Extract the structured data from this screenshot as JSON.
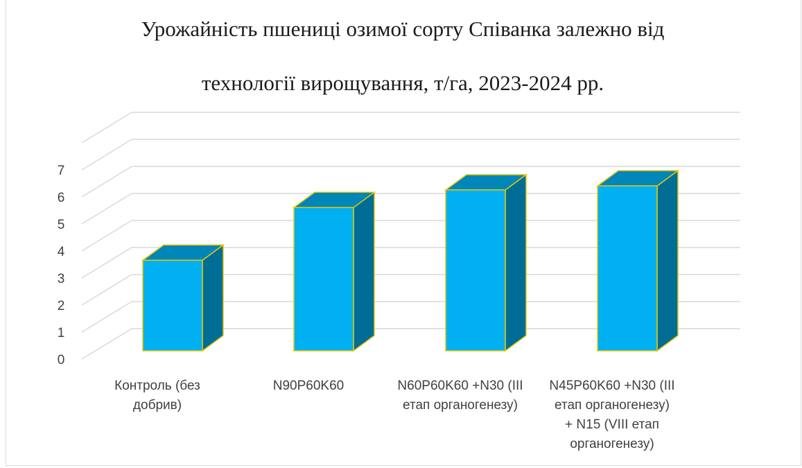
{
  "chart_data": {
    "type": "bar",
    "title_lines": [
      "Урожайність пшениці озимої сорту Співанка залежно від",
      "технології вирощування,  т/га, 2023-2024 рр."
    ],
    "categories": [
      [
        "Контроль (без",
        "добрив)"
      ],
      [
        "N90P60K60"
      ],
      [
        "N60P60K60 +N30 (III",
        "етап органогенезу)"
      ],
      [
        "N45P60K60 +N30 (III",
        "етап органогенезу)",
        "+ N15 (VIII етап",
        "органогенезу)"
      ]
    ],
    "values": [
      3.35,
      5.3,
      5.95,
      6.1
    ],
    "ylim": [
      0,
      7
    ],
    "yticks": [
      "0",
      "1",
      "2",
      "3",
      "4",
      "5",
      "6",
      "7"
    ],
    "grid": true,
    "style": "3d-column",
    "colors": {
      "front": "#00b0f0",
      "top": "#0086b8",
      "side": "#006d96",
      "edge": "#e8c800",
      "grid": "#d9d9d9",
      "text": "#404040",
      "title": "#1a1a1a"
    }
  }
}
